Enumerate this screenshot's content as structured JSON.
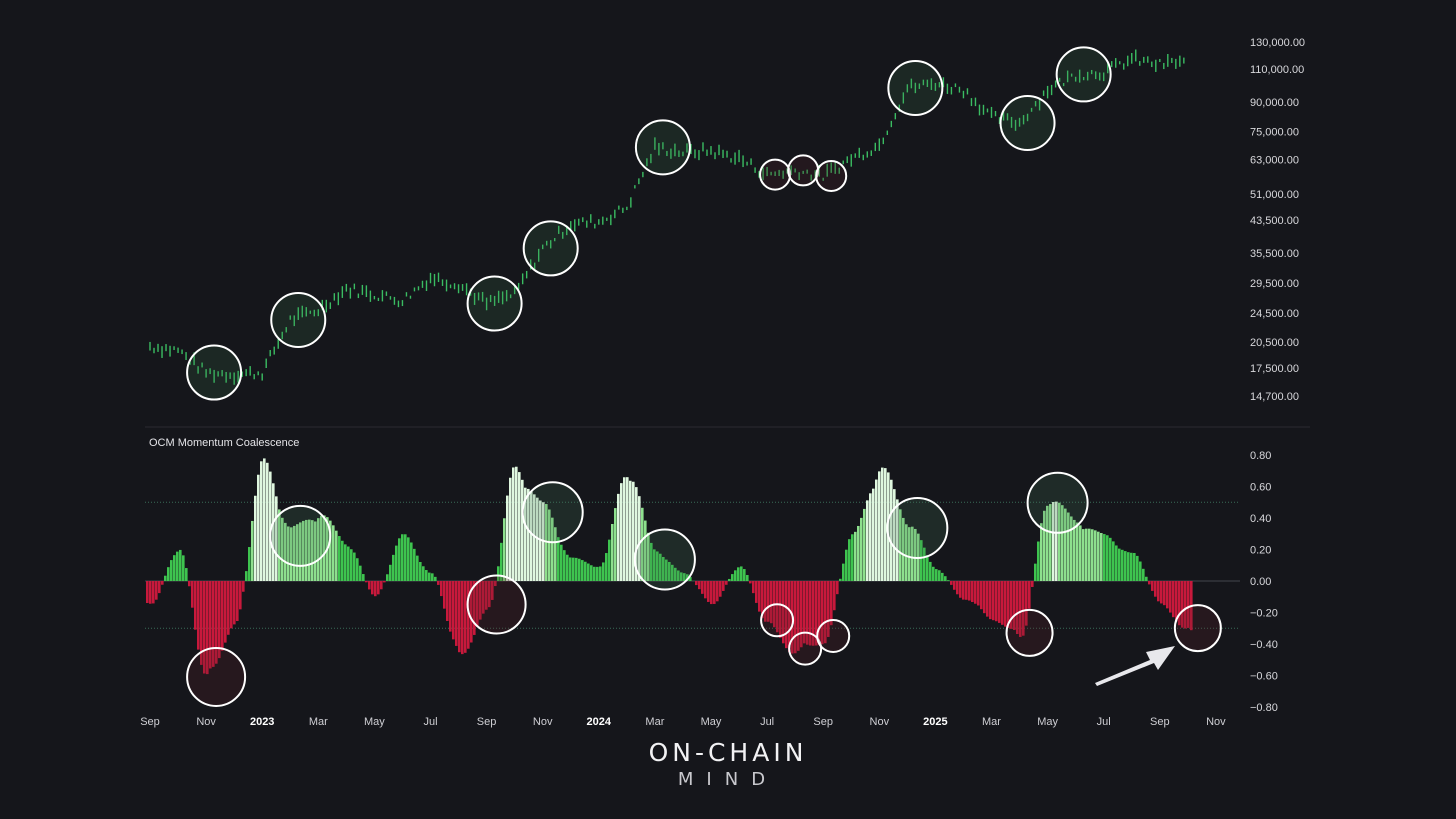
{
  "brand": {
    "line1": "ON-CHAIN",
    "line2": "MIND"
  },
  "colors": {
    "background": "#15161b",
    "price_candle": "#3fcf6a",
    "osc_positive": "#3ec44f",
    "osc_positive_strong": "#dff7df",
    "osc_negative": "#c8193c",
    "circle_outline": "#ffffff",
    "divider": "#2a2b31"
  },
  "chart_data": [
    {
      "type": "line",
      "title": "",
      "scale": "log",
      "ylim": [
        13500,
        140000
      ],
      "yticks": [
        "130,000.00",
        "110,000.00",
        "90,000.00",
        "75,000.00",
        "63,000.00",
        "51,000.00",
        "43,500.00",
        "35,500.00",
        "29,500.00",
        "24,500.00",
        "20,500.00",
        "17,500.00",
        "14,700.00"
      ],
      "ytick_values": [
        130000,
        110000,
        90000,
        75000,
        63000,
        51000,
        43500,
        35500,
        29500,
        24500,
        20500,
        17500,
        14700
      ],
      "x": [
        "2022-09",
        "2022-10",
        "2022-11",
        "2022-12",
        "2023-01",
        "2023-02",
        "2023-03",
        "2023-04",
        "2023-05",
        "2023-06",
        "2023-07",
        "2023-08",
        "2023-09",
        "2023-10",
        "2023-11",
        "2023-12",
        "2024-01",
        "2024-02",
        "2024-03",
        "2024-04",
        "2024-05",
        "2024-06",
        "2024-07",
        "2024-08",
        "2024-09",
        "2024-10",
        "2024-11",
        "2024-12",
        "2025-01",
        "2025-02",
        "2025-03",
        "2025-04",
        "2025-05",
        "2025-06",
        "2025-07",
        "2025-08",
        "2025-09",
        "2025-10"
      ],
      "series": [
        {
          "values": [
            20000,
            19500,
            17000,
            16800,
            17000,
            23500,
            25000,
            28500,
            27500,
            26500,
            30500,
            29300,
            26000,
            27500,
            36500,
            42500,
            43000,
            47000,
            68000,
            66000,
            66500,
            63500,
            57500,
            59000,
            57000,
            63500,
            69000,
            98000,
            101000,
            97000,
            82000,
            79000,
            97000,
            106500,
            108000,
            117000,
            113000,
            116000
          ]
        }
      ],
      "highlight_circles": [
        "2022-11",
        "2023-02",
        "2023-09",
        "2023-11",
        "2024-03",
        "2024-07",
        "2024-08",
        "2024-09",
        "2024-12",
        "2025-04",
        "2025-06"
      ]
    },
    {
      "type": "area",
      "title": "OCM Momentum Coalescence",
      "ylim": [
        -0.8,
        0.8
      ],
      "yticks": [
        "0.80",
        "0.60",
        "0.40",
        "0.20",
        "0.00",
        "−0.20",
        "−0.40",
        "−0.60",
        "−0.80"
      ],
      "ytick_values": [
        0.8,
        0.6,
        0.4,
        0.2,
        0,
        -0.2,
        -0.4,
        -0.6,
        -0.8
      ],
      "reference_lines": [
        0.5,
        -0.3
      ],
      "x_ticks": [
        {
          "date": "2022-09",
          "label": "Sep"
        },
        {
          "date": "2022-11",
          "label": "Nov"
        },
        {
          "date": "2023-01",
          "label": "2023",
          "bold": true
        },
        {
          "date": "2023-03",
          "label": "Mar"
        },
        {
          "date": "2023-05",
          "label": "May"
        },
        {
          "date": "2023-07",
          "label": "Jul"
        },
        {
          "date": "2023-09",
          "label": "Sep"
        },
        {
          "date": "2023-11",
          "label": "Nov"
        },
        {
          "date": "2024-01",
          "label": "2024",
          "bold": true
        },
        {
          "date": "2024-03",
          "label": "Mar"
        },
        {
          "date": "2024-05",
          "label": "May"
        },
        {
          "date": "2024-07",
          "label": "Jul"
        },
        {
          "date": "2024-09",
          "label": "Sep"
        },
        {
          "date": "2024-11",
          "label": "Nov"
        },
        {
          "date": "2025-01",
          "label": "2025",
          "bold": true
        },
        {
          "date": "2025-03",
          "label": "Mar"
        },
        {
          "date": "2025-05",
          "label": "May"
        },
        {
          "date": "2025-07",
          "label": "Jul"
        },
        {
          "date": "2025-09",
          "label": "Sep"
        },
        {
          "date": "2025-11",
          "label": "Nov"
        }
      ],
      "x": [
        "2022-09",
        "2022-10",
        "2022-11",
        "2022-12",
        "2023-01",
        "2023-02",
        "2023-03",
        "2023-04",
        "2023-05",
        "2023-06",
        "2023-07",
        "2023-08",
        "2023-09",
        "2023-10",
        "2023-11",
        "2023-12",
        "2024-01",
        "2024-02",
        "2024-03",
        "2024-04",
        "2024-05",
        "2024-06",
        "2024-07",
        "2024-08",
        "2024-09",
        "2024-10",
        "2024-11",
        "2024-12",
        "2025-01",
        "2025-02",
        "2025-03",
        "2025-04",
        "2025-05",
        "2025-06",
        "2025-07",
        "2025-08",
        "2025-09",
        "2025-10"
      ],
      "series": [
        {
          "name": "OCM Momentum Coalescence",
          "values": [
            -0.15,
            0.22,
            -0.66,
            -0.28,
            0.78,
            0.35,
            0.45,
            0.25,
            -0.1,
            0.3,
            0.05,
            -0.5,
            -0.2,
            0.76,
            0.5,
            0.15,
            0.1,
            0.75,
            0.2,
            0.05,
            -0.15,
            0.1,
            -0.3,
            -0.48,
            -0.4,
            0.3,
            0.76,
            0.4,
            0.08,
            -0.12,
            -0.25,
            -0.38,
            0.56,
            0.4,
            0.3,
            0.18,
            -0.15,
            -0.35
          ]
        }
      ],
      "highlight_circles": [
        "2022-11",
        "2023-02",
        "2023-09",
        "2023-11",
        "2024-03",
        "2024-07",
        "2024-08",
        "2024-09",
        "2024-12",
        "2025-04",
        "2025-05",
        "2025-10"
      ],
      "annotation": "arrow pointing to latest negative reading"
    }
  ]
}
